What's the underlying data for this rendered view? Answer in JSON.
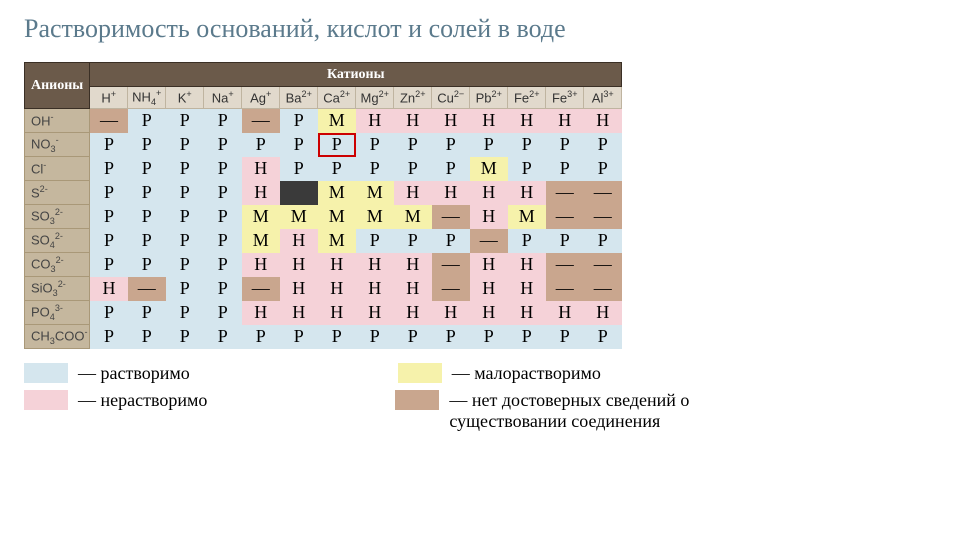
{
  "title": "Растворимость оснований, кислот и солей в воде",
  "headers": {
    "anions": "Анионы",
    "cations": "Катионы"
  },
  "cations": [
    "H+",
    "NH4+",
    "K+",
    "Na+",
    "Ag+",
    "Ba2+",
    "Ca2+",
    "Mg2+",
    "Zn2+",
    "Cu2−",
    "Pb2+",
    "Fe2+",
    "Fe3+",
    "Al3+"
  ],
  "cations_html": [
    "H<sup>+</sup>",
    "NH<sub>4</sub><sup>+</sup>",
    "K<sup>+</sup>",
    "Na<sup>+</sup>",
    "Ag<sup>+</sup>",
    "Ba<sup>2+</sup>",
    "Ca<sup>2+</sup>",
    "Mg<sup>2+</sup>",
    "Zn<sup>2+</sup>",
    "Cu<sup>2−</sup>",
    "Pb<sup>2+</sup>",
    "Fe<sup>2+</sup>",
    "Fe<sup>3+</sup>",
    "Al<sup>3+</sup>"
  ],
  "anions": [
    "OH-",
    "NO3-",
    "Cl-",
    "S2-",
    "SO32-",
    "SO42-",
    "CO32-",
    "SiO32-",
    "PO43-",
    "CH3COO-"
  ],
  "anions_html": [
    "OH<sup>-</sup>",
    "NO<sub>3</sub><sup>-</sup>",
    "Cl<sup>-</sup>",
    "S<sup>2-</sup>",
    "SO<sub>3</sub><sup>2-</sup>",
    "SO<sub>4</sub><sup>2-</sup>",
    "CO<sub>3</sub><sup>2-</sup>",
    "SiO<sub>3</sub><sup>2-</sup>",
    "PO<sub>4</sub><sup>3-</sup>",
    "CH<sub>3</sub>COO<sup>-</sup>"
  ],
  "grid": [
    [
      "—",
      "Р",
      "Р",
      "Р",
      "—",
      "Р",
      "М",
      "Н",
      "Н",
      "Н",
      "Н",
      "Н",
      "Н",
      "Н"
    ],
    [
      "Р",
      "Р",
      "Р",
      "Р",
      "Р",
      "Р",
      "Р",
      "Р",
      "Р",
      "Р",
      "Р",
      "Р",
      "Р",
      "Р"
    ],
    [
      "Р",
      "Р",
      "Р",
      "Р",
      "Н",
      "Р",
      "Р",
      "Р",
      "Р",
      "Р",
      "М",
      "Р",
      "Р",
      "Р"
    ],
    [
      "Р",
      "Р",
      "Р",
      "Р",
      "Н",
      "—",
      "М",
      "М",
      "Н",
      "Н",
      "Н",
      "Н",
      "—",
      "—"
    ],
    [
      "Р",
      "Р",
      "Р",
      "Р",
      "М",
      "М",
      "М",
      "М",
      "М",
      "—",
      "Н",
      "М",
      "—",
      "—"
    ],
    [
      "Р",
      "Р",
      "Р",
      "Р",
      "М",
      "Н",
      "М",
      "Р",
      "Р",
      "Р",
      "—",
      "Р",
      "Р",
      "Р"
    ],
    [
      "Р",
      "Р",
      "Р",
      "Р",
      "Н",
      "Н",
      "Н",
      "Н",
      "Н",
      "—",
      "Н",
      "Н",
      "—",
      "—"
    ],
    [
      "Н",
      "—",
      "Р",
      "Р",
      "—",
      "Н",
      "Н",
      "Н",
      "Н",
      "—",
      "Н",
      "Н",
      "—",
      "—"
    ],
    [
      "Р",
      "Р",
      "Р",
      "Р",
      "Н",
      "Н",
      "Н",
      "Н",
      "Н",
      "Н",
      "Н",
      "Н",
      "Н",
      "Н"
    ],
    [
      "Р",
      "Р",
      "Р",
      "Р",
      "Р",
      "Р",
      "Р",
      "Р",
      "Р",
      "Р",
      "Р",
      "Р",
      "Р",
      "Р"
    ]
  ],
  "highlight": {
    "row": 1,
    "col": 6
  },
  "black_cell": {
    "row": 3,
    "col": 5
  },
  "colors": {
    "P": "#d5e6ee",
    "H": "#f5d2d8",
    "M": "#f6f2ab",
    "D": "#c9a68e",
    "header_brown": "#6b5a4a",
    "anion_bg": "#c5b79e",
    "cation_bg": "#e1d9cc",
    "title_color": "#5b7a8c",
    "highlight_border": "#cc0000",
    "background": "#ffffff"
  },
  "legend": {
    "P": "— растворимо",
    "M": "— малорастворимо",
    "H": "— нерастворимо",
    "D": "— нет достоверных сведений о существовании соединения"
  },
  "typography": {
    "title_fontsize": 26,
    "cell_fontsize": 18,
    "header_fontsize": 13,
    "legend_fontsize": 18
  },
  "symbol_map": {
    "Р": "P",
    "Н": "H",
    "М": "M",
    "—": "D"
  }
}
